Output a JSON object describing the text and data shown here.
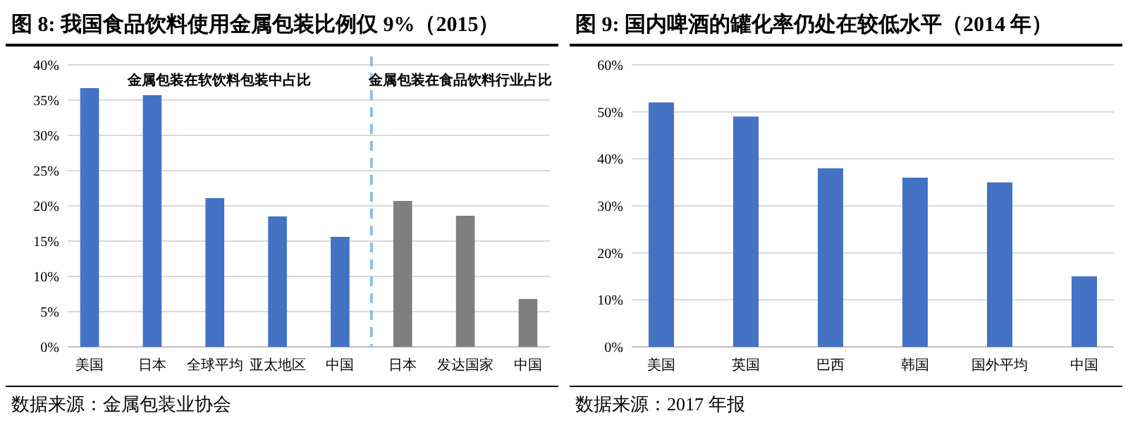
{
  "chart_data": [
    {
      "type": "bar",
      "title": "图 8: 我国食品饮料使用金属包装比例仅 9%（2015）",
      "categories": [
        "美国",
        "日本",
        "全球平均",
        "亚太地区",
        "中国",
        "日本",
        "发达国家",
        "中国"
      ],
      "values": [
        36.7,
        35.7,
        21.1,
        18.5,
        15.6,
        20.7,
        18.6,
        6.8
      ],
      "colors": [
        "#4472c4",
        "#4472c4",
        "#4472c4",
        "#4472c4",
        "#4472c4",
        "#7f7f7f",
        "#7f7f7f",
        "#7f7f7f"
      ],
      "ylim": [
        0,
        40
      ],
      "yticks": [
        {
          "value": 0,
          "label": "0%"
        },
        {
          "value": 5,
          "label": "5%"
        },
        {
          "value": 10,
          "label": "10%"
        },
        {
          "value": 15,
          "label": "15%"
        },
        {
          "value": 20,
          "label": "20%"
        },
        {
          "value": 25,
          "label": "25%"
        },
        {
          "value": 30,
          "label": "30%"
        },
        {
          "value": 35,
          "label": "35%"
        },
        {
          "value": 40,
          "label": "40%"
        }
      ],
      "grid": "y",
      "annotations": [
        "金属包装在软饮料包装中占比",
        "金属包装在食品饮料行业占比",
        "数据来源：金属包装业协会"
      ]
    },
    {
      "type": "bar",
      "title": "图 9: 国内啤酒的罐化率仍处在较低水平（2014 年）",
      "categories": [
        "美国",
        "英国",
        "巴西",
        "韩国",
        "国外平均",
        "中国"
      ],
      "values": [
        52,
        49,
        38,
        36,
        35,
        15
      ],
      "colors": [
        "#4472c4",
        "#4472c4",
        "#4472c4",
        "#4472c4",
        "#4472c4",
        "#4472c4"
      ],
      "ylim": [
        0,
        60
      ],
      "yticks": [
        {
          "value": 0,
          "label": "0%"
        },
        {
          "value": 10,
          "label": "10%"
        },
        {
          "value": 20,
          "label": "20%"
        },
        {
          "value": 30,
          "label": "30%"
        },
        {
          "value": 40,
          "label": "40%"
        },
        {
          "value": 50,
          "label": "50%"
        },
        {
          "value": 60,
          "label": "60%"
        }
      ],
      "grid": "y",
      "annotations": [
        "数据来源：2017 年报"
      ]
    }
  ]
}
